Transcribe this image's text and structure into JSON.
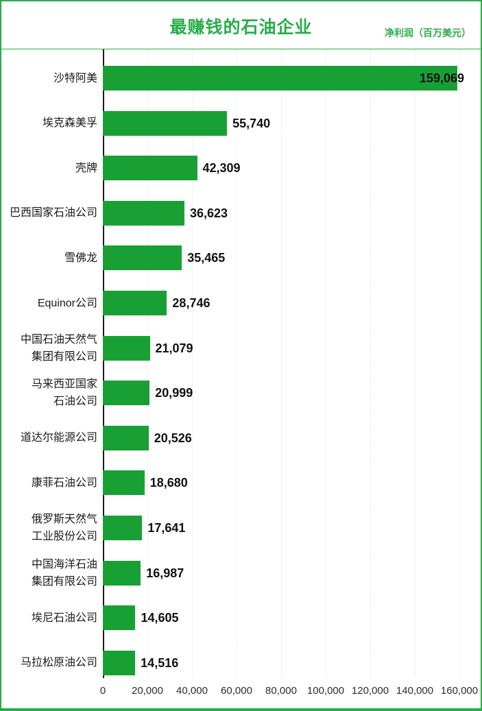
{
  "header": {
    "title": "最赚钱的石油企业",
    "subtitle": "净利润（百万美元）"
  },
  "colors": {
    "bar": "#18a035",
    "accent": "#28ad49",
    "grid": "#e4e4e4",
    "axis": "#1c1c1c",
    "label_text": "#1a1a1a",
    "value_text": "#111111",
    "tick_text": "#2b2b2b",
    "background": "#ffffff"
  },
  "chart_data": {
    "type": "bar",
    "orientation": "horizontal",
    "title": "最赚钱的石油企业",
    "unit_label": "净利润（百万美元）",
    "categories": [
      "沙特阿美",
      "埃克森美孚",
      "壳牌",
      "巴西国家石油公司",
      "雪佛龙",
      "Equinor公司",
      "中国石油天然气\n集团有限公司",
      "马来西亚国家\n石油公司",
      "道达尔能源公司",
      "康菲石油公司",
      "俄罗斯天然气\n工业股份公司",
      "中国海洋石油\n集团有限公司",
      "埃尼石油公司",
      "马拉松原油公司"
    ],
    "values": [
      159069,
      55740,
      42309,
      36623,
      35465,
      28746,
      21079,
      20999,
      20526,
      18680,
      17641,
      16987,
      14605,
      14516
    ],
    "value_labels": [
      "159,069",
      "55,740",
      "42,309",
      "36,623",
      "35,465",
      "28,746",
      "21,079",
      "20,999",
      "20,526",
      "18,680",
      "17,641",
      "16,987",
      "14,605",
      "14,516"
    ],
    "xlim": [
      0,
      160000
    ],
    "x_ticks": {
      "values": [
        0,
        20000,
        40000,
        60000,
        80000,
        100000,
        120000,
        140000,
        160000
      ],
      "labels": [
        "0",
        "20,000",
        "40,000",
        "60,000",
        "80,000",
        "100,000",
        "120,000",
        "140,000",
        "160,000"
      ]
    },
    "grid": "dotted-vertical",
    "legend": "none",
    "value_label_position": "end-of-bar"
  }
}
